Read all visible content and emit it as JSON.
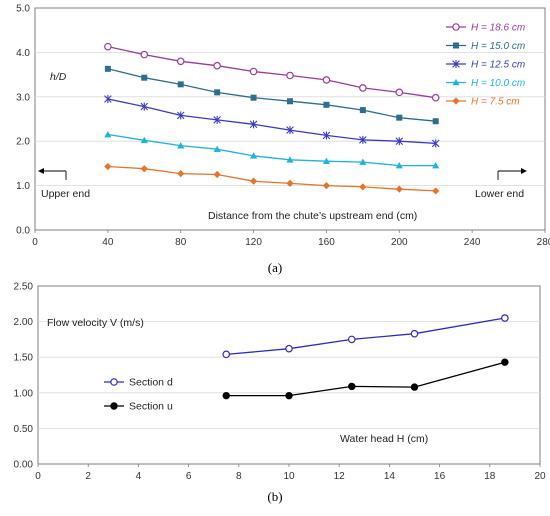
{
  "chart_data": [
    {
      "type": "line",
      "panel_label": "(a)",
      "ylabel": "h/D",
      "xlabel": "Distance from the chute’s upstream end (cm)",
      "xlim": [
        0,
        280
      ],
      "ylim": [
        0,
        5.0
      ],
      "x_ticks": [
        "0",
        "40",
        "80",
        "120",
        "160",
        "200",
        "240",
        "280"
      ],
      "y_ticks": [
        "0.0",
        "1.0",
        "2.0",
        "3.0",
        "4.0",
        "5.0"
      ],
      "grid": "horizontal",
      "legend_position": "top-right",
      "annotations": {
        "upper_end": "Upper end",
        "lower_end": "Lower end"
      },
      "x": [
        40,
        60,
        80,
        100,
        120,
        140,
        160,
        180,
        200,
        220
      ],
      "series": [
        {
          "name": "H = 18.6 cm",
          "color": "#9B3A9B",
          "marker": "circle-open",
          "values": [
            4.13,
            3.95,
            3.8,
            3.7,
            3.57,
            3.48,
            3.38,
            3.2,
            3.1,
            2.98
          ]
        },
        {
          "name": "H = 15.0 cm",
          "color": "#2E6E8E",
          "marker": "square",
          "values": [
            3.63,
            3.43,
            3.28,
            3.1,
            2.98,
            2.9,
            2.82,
            2.7,
            2.53,
            2.45
          ]
        },
        {
          "name": "H = 12.5 cm",
          "color": "#3A3AC8",
          "marker": "asterisk",
          "values": [
            2.95,
            2.78,
            2.58,
            2.48,
            2.38,
            2.25,
            2.13,
            2.03,
            2.0,
            1.95
          ]
        },
        {
          "name": "H = 10.0 cm",
          "color": "#1FB3E0",
          "marker": "triangle",
          "values": [
            2.15,
            2.02,
            1.9,
            1.82,
            1.67,
            1.58,
            1.55,
            1.53,
            1.45,
            1.45
          ]
        },
        {
          "name": "H = 7.5 cm",
          "color": "#E8732A",
          "marker": "diamond",
          "values": [
            1.43,
            1.38,
            1.27,
            1.25,
            1.1,
            1.05,
            1.0,
            0.97,
            0.92,
            0.88
          ]
        }
      ]
    },
    {
      "type": "line",
      "panel_label": "(b)",
      "ylabel": "Flow velocity V (m/s)",
      "xlabel": "Water head H (cm)",
      "xlim": [
        0,
        20
      ],
      "ylim": [
        0,
        2.5
      ],
      "x_ticks": [
        "0",
        "2",
        "4",
        "6",
        "8",
        "10",
        "12",
        "14",
        "16",
        "18",
        "20"
      ],
      "y_ticks": [
        "0.00",
        "0.50",
        "1.00",
        "1.50",
        "2.00",
        "2.50"
      ],
      "grid": "horizontal",
      "legend_position": "center-left",
      "x": [
        7.5,
        10.0,
        12.5,
        15.0,
        18.6
      ],
      "series": [
        {
          "name": "Section d",
          "color": "#2B2BC8",
          "marker": "circle-open",
          "values": [
            1.54,
            1.62,
            1.75,
            1.83,
            2.05
          ]
        },
        {
          "name": "Section u",
          "color": "#000000",
          "marker": "circle-filled",
          "values": [
            0.96,
            0.96,
            1.09,
            1.08,
            1.43
          ]
        }
      ]
    }
  ]
}
